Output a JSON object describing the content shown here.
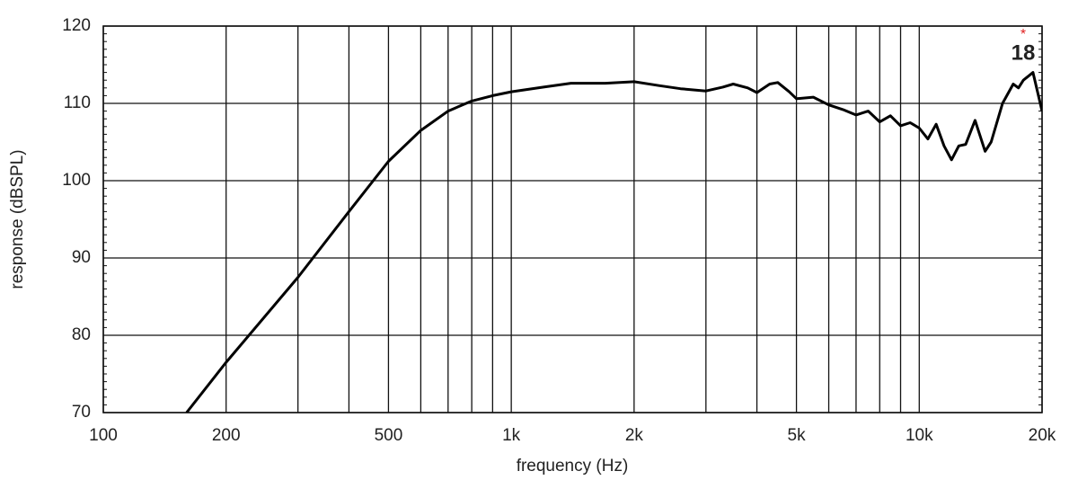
{
  "chart_data": {
    "type": "line",
    "x_scale": "log",
    "grid": true,
    "x_label": "frequency (Hz)",
    "y_label": "response (dBSPL)",
    "logo": "18",
    "xlim": [
      100,
      20000
    ],
    "ylim": [
      70,
      120
    ],
    "xticks": [
      100,
      200,
      500,
      {
        "value": 1000,
        "label": "1k"
      },
      {
        "value": 2000,
        "label": "2k"
      },
      {
        "value": 5000,
        "label": "5k"
      },
      {
        "value": 10000,
        "label": "10k"
      },
      {
        "value": 20000,
        "label": "20k"
      }
    ],
    "x_minor_grid": [
      300,
      400,
      600,
      700,
      800,
      900,
      3000,
      4000,
      6000,
      7000,
      8000,
      9000
    ],
    "yticks": [
      70,
      80,
      90,
      100,
      110,
      120
    ],
    "series": [
      {
        "color": "#000000",
        "x": [
          160,
          200,
          300,
          400,
          500,
          600,
          700,
          800,
          900,
          1000,
          1200,
          1400,
          1700,
          2000,
          2300,
          2600,
          3000,
          3300,
          3500,
          3800,
          4000,
          4300,
          4500,
          4800,
          5000,
          5500,
          6000,
          6500,
          7000,
          7500,
          8000,
          8500,
          9000,
          9500,
          10000,
          10500,
          11000,
          11500,
          12000,
          12500,
          13000,
          13700,
          14500,
          15000,
          16000,
          17000,
          17500,
          18000,
          19000,
          20000
        ],
        "values": [
          70,
          76.5,
          87.5,
          96,
          102.5,
          106.5,
          109,
          110.3,
          111,
          111.5,
          112.1,
          112.6,
          112.6,
          112.8,
          112.3,
          111.9,
          111.6,
          112.1,
          112.5,
          112.0,
          111.4,
          112.5,
          112.7,
          111.5,
          110.6,
          110.8,
          109.8,
          109.2,
          108.5,
          109.0,
          107.6,
          108.4,
          107.1,
          107.5,
          106.8,
          105.4,
          107.3,
          104.5,
          102.7,
          104.5,
          104.7,
          107.8,
          103.8,
          105.0,
          110.0,
          112.5,
          112.0,
          113.0,
          114.0,
          109.0
        ]
      }
    ]
  }
}
